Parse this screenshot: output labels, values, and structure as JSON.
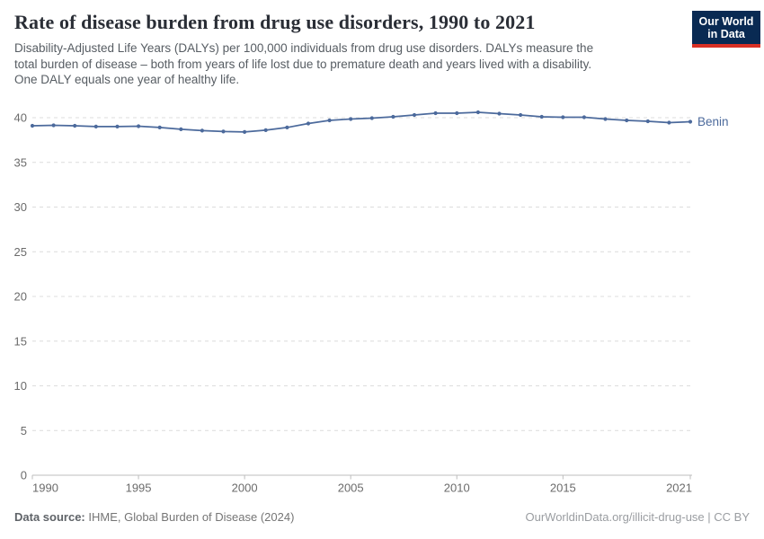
{
  "header": {
    "title": "Rate of disease burden from drug use disorders, 1990 to 2021",
    "subtitle_lines": [
      "Disability-Adjusted Life Years (DALYs) per 100,000 individuals from drug use disorders. DALYs measure the",
      "total burden of disease – both from years of life lost due to premature death and years lived with a disability.",
      "One DALY equals one year of healthy life."
    ]
  },
  "logo": {
    "line1": "Our World",
    "line2": "in Data",
    "bg_color": "#092a53",
    "stripe_color": "#d93025"
  },
  "chart_data": {
    "type": "line",
    "title": "Rate of disease burden from drug use disorders, 1990 to 2021",
    "xlabel": "",
    "ylabel": "",
    "x": [
      1990,
      1991,
      1992,
      1993,
      1994,
      1995,
      1996,
      1997,
      1998,
      1999,
      2000,
      2001,
      2002,
      2003,
      2004,
      2005,
      2006,
      2007,
      2008,
      2009,
      2010,
      2011,
      2012,
      2013,
      2014,
      2015,
      2016,
      2017,
      2018,
      2019,
      2020,
      2021
    ],
    "series": [
      {
        "name": "Benin",
        "color": "#4C6A9C",
        "values": [
          39.1,
          39.15,
          39.1,
          39.0,
          39.0,
          39.05,
          38.9,
          38.7,
          38.55,
          38.45,
          38.4,
          38.6,
          38.9,
          39.35,
          39.7,
          39.85,
          39.95,
          40.1,
          40.3,
          40.5,
          40.5,
          40.6,
          40.45,
          40.3,
          40.1,
          40.05,
          40.05,
          39.85,
          39.7,
          39.6,
          39.45,
          39.55
        ]
      }
    ],
    "x_ticks": [
      1990,
      1995,
      2000,
      2005,
      2010,
      2015,
      2021
    ],
    "y_ticks": [
      0,
      5,
      10,
      15,
      20,
      25,
      30,
      35,
      40
    ],
    "ylim": [
      0,
      41.5
    ],
    "grid": "horizontal dashed",
    "legend": "entity label at line end",
    "markers": true
  },
  "footer": {
    "data_source_label": "Data source:",
    "data_source_text": "IHME, Global Burden of Disease (2024)",
    "attribution": "OurWorldinData.org/illicit-drug-use | CC BY"
  },
  "colors": {
    "line": "#4C6A9C",
    "gridline": "#dcdcdc",
    "axis": "#bdbdbd",
    "tick_label": "#6b6b6b",
    "title": "#2a2e36",
    "subtitle": "#575d63"
  }
}
